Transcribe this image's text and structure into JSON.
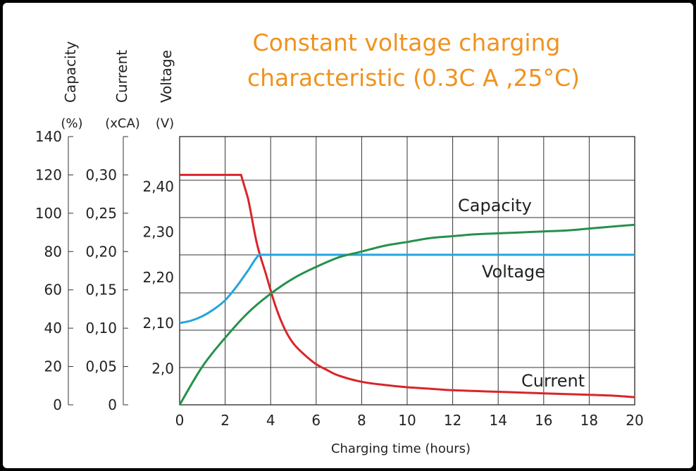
{
  "chart_data": {
    "type": "line",
    "title": [
      "Constant voltage charging",
      "characteristic (0.3C A ,25°C)"
    ],
    "xlabel": "Charging time (hours)",
    "xlim": [
      0,
      20
    ],
    "x_ticks": [
      "0",
      "2",
      "4",
      "6",
      "8",
      "10",
      "12",
      "14",
      "16",
      "18",
      "20"
    ],
    "axes": {
      "capacity": {
        "label": "Capacity",
        "unit": "(%)",
        "ticks": [
          "0",
          "20",
          "40",
          "60",
          "80",
          "100",
          "120",
          "140"
        ],
        "range": [
          0,
          140
        ]
      },
      "current": {
        "label": "Current",
        "unit": "(xCA)",
        "ticks": [
          "0",
          "0,05",
          "0,10",
          "0,15",
          "0,20",
          "0,25",
          "0,30"
        ],
        "range": [
          0,
          0.35
        ]
      },
      "voltage": {
        "label": "Voltage",
        "unit": "(V)",
        "ticks": [
          "2,0",
          "2,10",
          "2,20",
          "2,30",
          "2,40"
        ],
        "range": [
          1.92,
          2.51
        ]
      }
    },
    "grid": true,
    "series": [
      {
        "name": "Current",
        "axis": "current",
        "color": "#d9252b",
        "x": [
          0,
          2.7,
          3.0,
          3.4,
          3.8,
          4.2,
          4.6,
          5.0,
          5.5,
          6.0,
          6.5,
          7,
          8,
          9,
          10,
          11,
          12,
          13,
          14,
          15,
          16,
          17,
          18,
          19,
          20
        ],
        "y": [
          0.3,
          0.3,
          0.27,
          0.21,
          0.17,
          0.13,
          0.1,
          0.08,
          0.065,
          0.053,
          0.045,
          0.038,
          0.03,
          0.026,
          0.023,
          0.021,
          0.019,
          0.018,
          0.017,
          0.016,
          0.015,
          0.014,
          0.013,
          0.012,
          0.01
        ]
      },
      {
        "name": "Voltage",
        "axis": "voltage",
        "color": "#25a4e0",
        "x": [
          0,
          0.5,
          1.0,
          1.5,
          2.0,
          2.5,
          3.0,
          3.5,
          4,
          6,
          8,
          10,
          12,
          14,
          16,
          18,
          20
        ],
        "y": [
          2.1,
          2.105,
          2.115,
          2.13,
          2.15,
          2.18,
          2.215,
          2.25,
          2.25,
          2.25,
          2.25,
          2.25,
          2.25,
          2.25,
          2.25,
          2.25,
          2.25
        ]
      },
      {
        "name": "Capacity",
        "axis": "capacity",
        "color": "#26914a",
        "x": [
          0,
          1,
          2,
          3,
          4,
          5,
          6,
          7,
          8,
          9,
          10,
          11,
          12,
          13,
          14,
          15,
          16,
          17,
          18,
          19,
          20
        ],
        "y": [
          0,
          20,
          35,
          48,
          58,
          66,
          72,
          77,
          80,
          83,
          85,
          87,
          88,
          89,
          89.5,
          90,
          90.5,
          91,
          92,
          93,
          94
        ]
      }
    ],
    "annotations": {
      "capacity": "Capacity",
      "voltage": "Voltage",
      "current": "Current"
    }
  }
}
